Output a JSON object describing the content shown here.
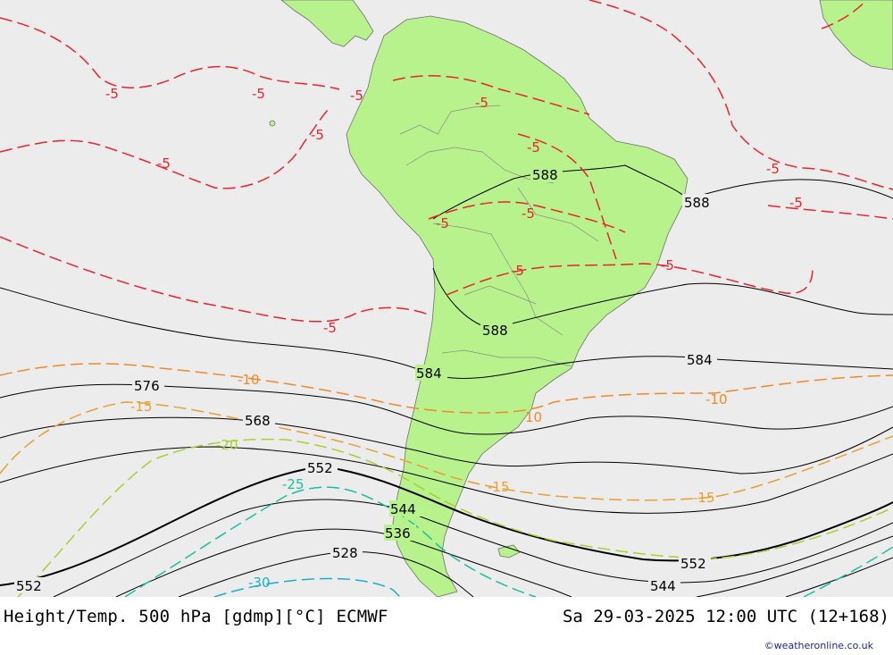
{
  "footer": {
    "title": "Height/Temp. 500 hPa [gdmp][°C] ECMWF",
    "valid_time": "Sa 29-03-2025 12:00 UTC (12+168)",
    "credit": "©weatheronline.co.uk"
  },
  "colors": {
    "ocean": "#ececec",
    "land": "#b8f28c",
    "height_contour": "#000000",
    "temp_minus5": "#e8242c",
    "temp_minus10": "#f08a28",
    "temp_minus15": "#e8a030",
    "temp_minus20": "#a8d030",
    "temp_minus25": "#18c0a0",
    "temp_minus30": "#18b0c8"
  },
  "height_labels": [
    "588",
    "588",
    "588",
    "584",
    "584",
    "576",
    "568",
    "552",
    "552",
    "552",
    "544",
    "544",
    "536",
    "528"
  ],
  "temp_labels": [
    "-5",
    "-5",
    "-5",
    "-5",
    "-5",
    "-5",
    "-5",
    "-5",
    "-5",
    "-5",
    "-5",
    "-5",
    "-5",
    "-5",
    "-10",
    "-10",
    "10",
    "-15",
    "-15",
    "-15",
    "-20",
    "-25",
    "-30"
  ]
}
